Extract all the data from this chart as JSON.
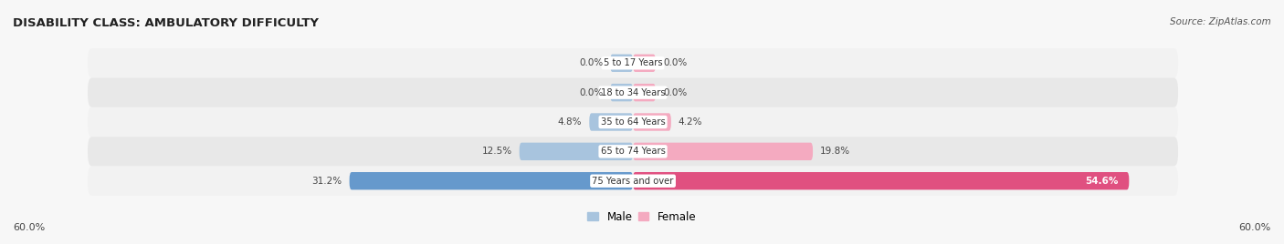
{
  "title": "DISABILITY CLASS: AMBULATORY DIFFICULTY",
  "source": "Source: ZipAtlas.com",
  "categories": [
    "5 to 17 Years",
    "18 to 34 Years",
    "35 to 64 Years",
    "65 to 74 Years",
    "75 Years and over"
  ],
  "male_values": [
    0.0,
    0.0,
    4.8,
    12.5,
    31.2
  ],
  "female_values": [
    0.0,
    0.0,
    4.2,
    19.8,
    54.6
  ],
  "max_val": 60.0,
  "male_colors": [
    "#a8c4de",
    "#a8c4de",
    "#a8c4de",
    "#a8c4de",
    "#6699cc"
  ],
  "female_colors": [
    "#f4aac0",
    "#f4aac0",
    "#f4aac0",
    "#f4aac0",
    "#e05080"
  ],
  "row_bg_colors": [
    "#f2f2f2",
    "#e8e8e8",
    "#f2f2f2",
    "#e8e8e8",
    "#f2f2f2"
  ],
  "label_color": "#333333",
  "title_color": "#222222",
  "source_color": "#555555",
  "axis_label": "60.0%",
  "legend_male": "Male",
  "legend_female": "Female",
  "min_bar_val": 2.5
}
